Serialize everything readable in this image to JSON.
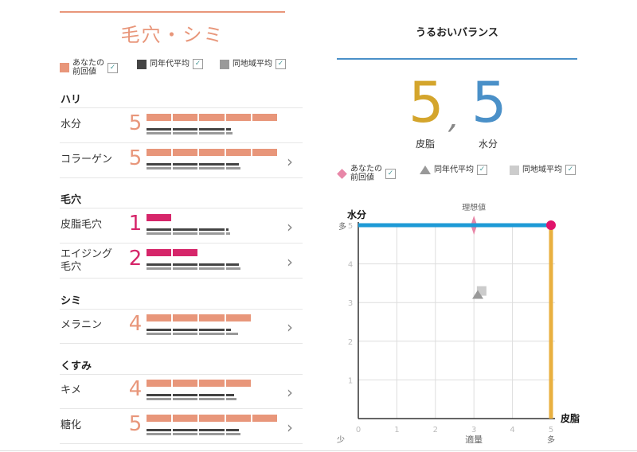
{
  "left": {
    "title": "毛穴・シミ",
    "legend": [
      {
        "label": "あなたの\n前回値",
        "color": "#e8967a"
      },
      {
        "label": "同年代平均",
        "color": "#444444"
      },
      {
        "label": "同地域平均",
        "color": "#999999"
      }
    ],
    "sections": [
      {
        "title": "ハリ",
        "rows": [
          {
            "label": "水分",
            "value": 5,
            "age_avg": 3.2,
            "region_avg": 3.25,
            "chevron": false
          },
          {
            "label": "コラーゲン",
            "value": 5,
            "age_avg": 3.5,
            "region_avg": 3.55,
            "chevron": true
          }
        ]
      },
      {
        "title": "毛穴",
        "rows": [
          {
            "label": "皮脂毛穴",
            "value": 1,
            "age_avg": 3.1,
            "region_avg": 3.15,
            "chevron": true
          },
          {
            "label": "エイジング\n毛穴",
            "value": 2,
            "age_avg": 3.5,
            "region_avg": 3.55,
            "chevron": true
          }
        ]
      },
      {
        "title": "シミ",
        "rows": [
          {
            "label": "メラニン",
            "value": 4,
            "age_avg": 3.2,
            "region_avg": 3.45,
            "chevron": true
          }
        ]
      },
      {
        "title": "くすみ",
        "rows": [
          {
            "label": "キメ",
            "value": 4,
            "age_avg": 3.3,
            "region_avg": 3.4,
            "chevron": true
          },
          {
            "label": "糖化",
            "value": 5,
            "age_avg": 3.5,
            "region_avg": 3.55,
            "chevron": true
          }
        ]
      }
    ],
    "colors": {
      "high": "#e8967a",
      "low": "#d6266a",
      "age": "#444444",
      "region": "#999999"
    }
  },
  "right": {
    "title": "うるおいバランス",
    "sebum_value": "5",
    "moisture_value": "5",
    "separator": ",",
    "sebum_label": "皮脂",
    "moisture_label": "水分",
    "legend": [
      {
        "label": "あなたの\n前回値",
        "icon": "diamond",
        "color": "#e887a8"
      },
      {
        "label": "同年代平均",
        "icon": "triangle",
        "color": "#999999"
      },
      {
        "label": "同地域平均",
        "icon": "square",
        "color": "#cccccc"
      }
    ],
    "chart_data": {
      "type": "scatter",
      "xlabel": "皮脂",
      "ylabel": "水分",
      "xlim": [
        0,
        5
      ],
      "ylim": [
        0,
        5
      ],
      "xticks": [
        "0",
        "1",
        "2",
        "3",
        "4",
        "5"
      ],
      "yticks": [
        "1",
        "2",
        "3",
        "4",
        "5"
      ],
      "x_low": "少",
      "x_mid": "適量",
      "x_high": "多",
      "y_high": "多",
      "ideal_label": "理想値",
      "grid": true,
      "points": {
        "current": {
          "x": 5,
          "y": 5,
          "color": "#e0136b"
        },
        "previous": {
          "x": 3,
          "y": 5
        },
        "age_avg": {
          "x": 3.1,
          "y": 3.2
        },
        "region_avg": {
          "x": 3.2,
          "y": 3.3
        }
      },
      "colors": {
        "moisture_line": "#1e9ad6",
        "sebum_line": "#e9b040"
      }
    }
  }
}
